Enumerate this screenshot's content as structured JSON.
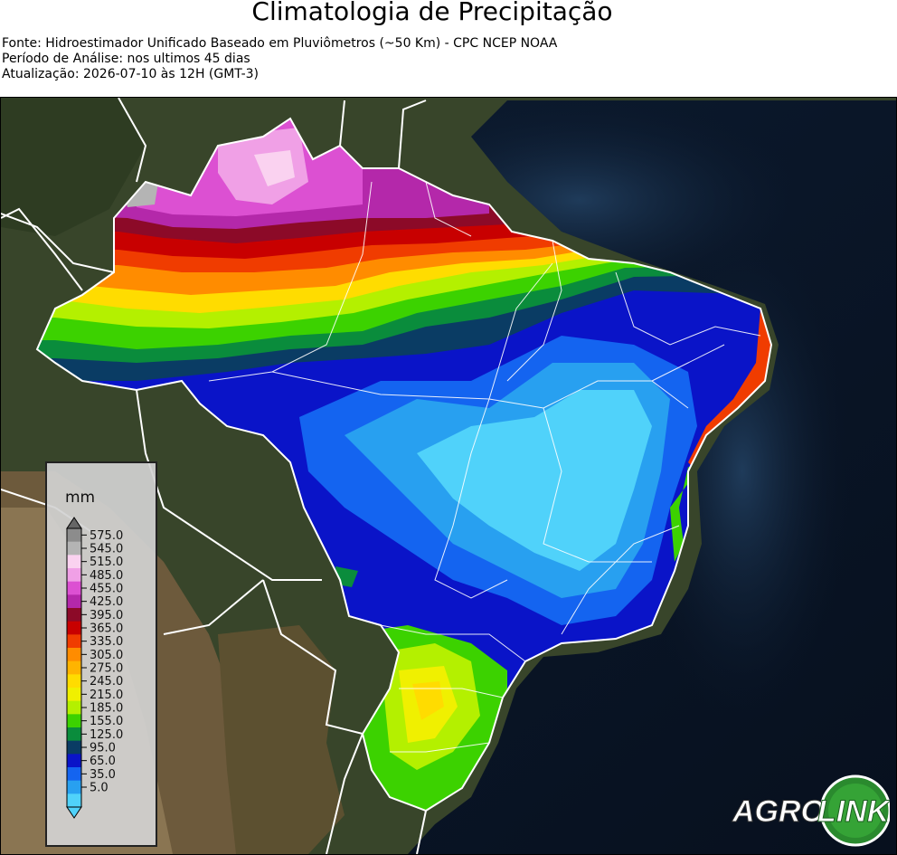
{
  "title": "Climatologia de Precipitação",
  "subtitle_lines": [
    "Fonte: Hidroestimador Unificado Baseado em Pluviômetros (~50 Km) - CPC NCEP NOAA",
    "Período de Análise: nos ultimos 45 dias",
    "Atualização: 2026-07-10 às 12H (GMT-3)"
  ],
  "legend": {
    "unit": "mm",
    "ticks": [
      "575.0",
      "545.0",
      "515.0",
      "485.0",
      "455.0",
      "425.0",
      "395.0",
      "365.0",
      "335.0",
      "305.0",
      "275.0",
      "245.0",
      "215.0",
      "185.0",
      "155.0",
      "125.0",
      "95.0",
      "65.0",
      "35.0",
      "5.0"
    ],
    "colors": [
      "#8c8c8c",
      "#b4b4b4",
      "#fad2f0",
      "#f0a0e6",
      "#dc50d2",
      "#b428aa",
      "#8c0a28",
      "#c80000",
      "#f03c00",
      "#ff8c00",
      "#ffb400",
      "#ffdc00",
      "#f0f000",
      "#b4f000",
      "#3cd200",
      "#0a8c3c",
      "#0a3c64",
      "#0a14c8",
      "#1464f0",
      "#28a0f0",
      "#50d2fa"
    ]
  },
  "logo": {
    "text_left": "AGRO",
    "text_right": "LINK"
  }
}
